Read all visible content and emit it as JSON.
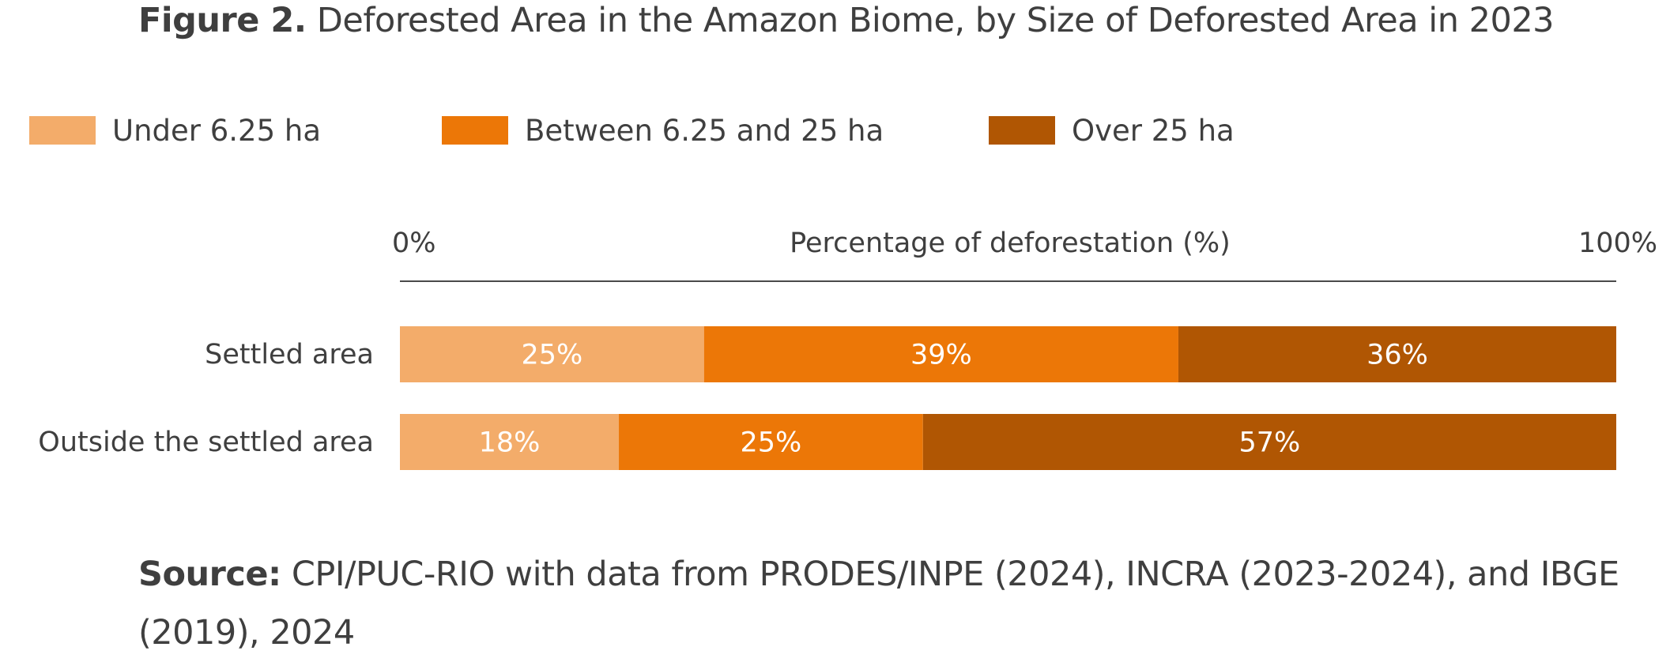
{
  "figure": {
    "lead": "Figure 2.",
    "title": "Deforested Area in the Amazon Biome, by Size of Deforested Area in 2023"
  },
  "legend": [
    {
      "label": "Under 6.25 ha",
      "color": "#F3AC6A"
    },
    {
      "label": "Between 6.25 and 25 ha",
      "color": "#EC7707"
    },
    {
      "label": "Over 25 ha",
      "color": "#B05603"
    }
  ],
  "chart_data": {
    "type": "bar",
    "orientation": "horizontal",
    "stacked": true,
    "xlabel": "Percentage of deforestation (%)",
    "xlim": [
      0,
      100
    ],
    "x_ticks": [
      "0%",
      "100%"
    ],
    "categories": [
      "Settled area",
      "Outside the settled area"
    ],
    "series": [
      {
        "name": "Under 6.25 ha",
        "values": [
          25,
          18
        ],
        "labels": [
          "25%",
          "18%"
        ]
      },
      {
        "name": "Between 6.25 and 25 ha",
        "values": [
          39,
          25
        ],
        "labels": [
          "39%",
          "25%"
        ]
      },
      {
        "name": "Over 25 ha",
        "values": [
          36,
          57
        ],
        "labels": [
          "36%",
          "57%"
        ]
      }
    ],
    "legend_position": "top-left"
  },
  "source": {
    "lead": "Source:",
    "text": "CPI/PUC-RIO with data from PRODES/INPE (2024), INCRA (2023-2024), and IBGE (2019), 2024"
  }
}
